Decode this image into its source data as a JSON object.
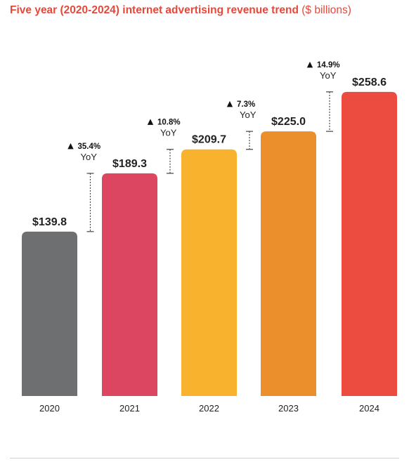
{
  "chart_data": {
    "type": "bar",
    "title": "Five year (2020-2024) internet advertising revenue trend",
    "subtitle": "($ billions)",
    "categories": [
      "2020",
      "2021",
      "2022",
      "2023",
      "2024"
    ],
    "values": [
      139.8,
      189.3,
      209.7,
      225.0,
      258.6
    ],
    "value_labels": [
      "$139.8",
      "$189.3",
      "$209.7",
      "$225.0",
      "$258.6"
    ],
    "bar_colors": [
      "#6d6f71",
      "#dc4661",
      "#f8b22d",
      "#ea8f2b",
      "#ec4b3f"
    ],
    "yoy": [
      {
        "pct": "35.4%",
        "label": "YoY"
      },
      {
        "pct": "10.8%",
        "label": "YoY"
      },
      {
        "pct": "7.3%",
        "label": "YoY"
      },
      {
        "pct": "14.9%",
        "label": "YoY"
      }
    ],
    "up_marker": "▲",
    "xlabel": "",
    "ylabel": "",
    "ylim": [
      0,
      277
    ],
    "grid": false,
    "legend": "none"
  }
}
